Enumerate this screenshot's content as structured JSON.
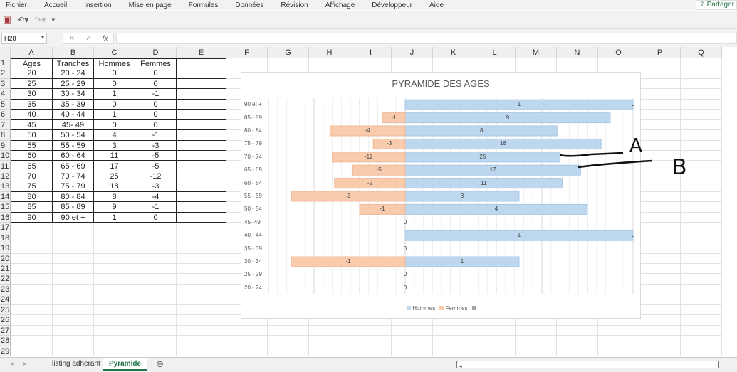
{
  "menu": [
    "Fichier",
    "Accueil",
    "Insertion",
    "Mise en page",
    "Formules",
    "Données",
    "Révision",
    "Affichage",
    "Développeur",
    "Aide"
  ],
  "share_label": "Partager",
  "quick_access": {
    "save_icon": "save-icon",
    "undo_icon": "undo-icon",
    "redo_icon": "redo-icon",
    "customize_icon": "customize-icon"
  },
  "formula_bar": {
    "name_box": "H28",
    "cancel": "✕",
    "enter": "✓",
    "fx": "fx",
    "formula": ""
  },
  "columns": [
    "A",
    "B",
    "C",
    "D",
    "E",
    "F",
    "G",
    "H",
    "I",
    "J",
    "K",
    "L",
    "M",
    "N",
    "O",
    "P",
    "Q"
  ],
  "row_count": 29,
  "table": {
    "headers": [
      "Ages",
      "Tranches",
      "Hommes",
      "Femmes",
      ""
    ],
    "rows": [
      [
        "20",
        "20 - 24",
        "0",
        "0"
      ],
      [
        "25",
        "25 - 29",
        "0",
        "0"
      ],
      [
        "30",
        "30 - 34",
        "1",
        "-1"
      ],
      [
        "35",
        "35 - 39",
        "0",
        "0"
      ],
      [
        "40",
        "40 - 44",
        "1",
        "0"
      ],
      [
        "45",
        "45- 49",
        "0",
        "0"
      ],
      [
        "50",
        "50 - 54",
        "4",
        "-1"
      ],
      [
        "55",
        "55 - 59",
        "3",
        "-3"
      ],
      [
        "60",
        "60 - 64",
        "11",
        "-5"
      ],
      [
        "65",
        "65 - 69",
        "17",
        "-5"
      ],
      [
        "70",
        "70 - 74",
        "25",
        "-12"
      ],
      [
        "75",
        "75 - 79",
        "18",
        "-3"
      ],
      [
        "80",
        "80 - 84",
        "8",
        "-4"
      ],
      [
        "85",
        "85 - 89",
        "9",
        "-1"
      ],
      [
        "90",
        "90 et +",
        "1",
        "0"
      ]
    ]
  },
  "chart_data": {
    "type": "bar",
    "orientation": "horizontal",
    "title": "PYRAMIDE DES AGES",
    "categories": [
      "90 et +",
      "85 - 89",
      "80 - 84",
      "75 - 79",
      "70 - 74",
      "65 - 69",
      "60 - 64",
      "55 - 59",
      "50 - 54",
      "45- 49",
      "40 - 44",
      "35 - 39",
      "30 - 34",
      "25 - 29",
      "20 - 24"
    ],
    "xlim": [
      -3,
      5
    ],
    "grid": true,
    "legend_position": "bottom",
    "series": [
      {
        "name": "Hommes",
        "color": "#bdd7ee",
        "extent": [
          5,
          4.5,
          3.35,
          4.3,
          3.4,
          3.85,
          3.45,
          2.5,
          4,
          0,
          5,
          0,
          2.5,
          0,
          0
        ],
        "labels": [
          "1",
          "9",
          "8",
          "18",
          "25",
          "17",
          "11",
          "3",
          "4",
          "",
          "1",
          "",
          "1",
          "",
          ""
        ]
      },
      {
        "name": "Femmes",
        "color": "#f8cbad",
        "extent": [
          0,
          -0.5,
          -1.65,
          -0.7,
          -1.6,
          -1.15,
          -1.55,
          -2.5,
          -1,
          0,
          0,
          0,
          -2.5,
          0,
          0
        ],
        "labels": [
          "0",
          "-1",
          "-4",
          "-3",
          "-12",
          "-5",
          "-5",
          "-3",
          "-1",
          "0",
          "0",
          "0",
          "-1",
          "0",
          "0"
        ]
      }
    ],
    "legend_extra_color": "#a5a5a5"
  },
  "annotations": {
    "a": "A",
    "b": "B"
  },
  "sheets": {
    "tabs": [
      "listing adherant",
      "Pyramide"
    ],
    "active": "Pyramide",
    "add_icon": "⊕"
  }
}
